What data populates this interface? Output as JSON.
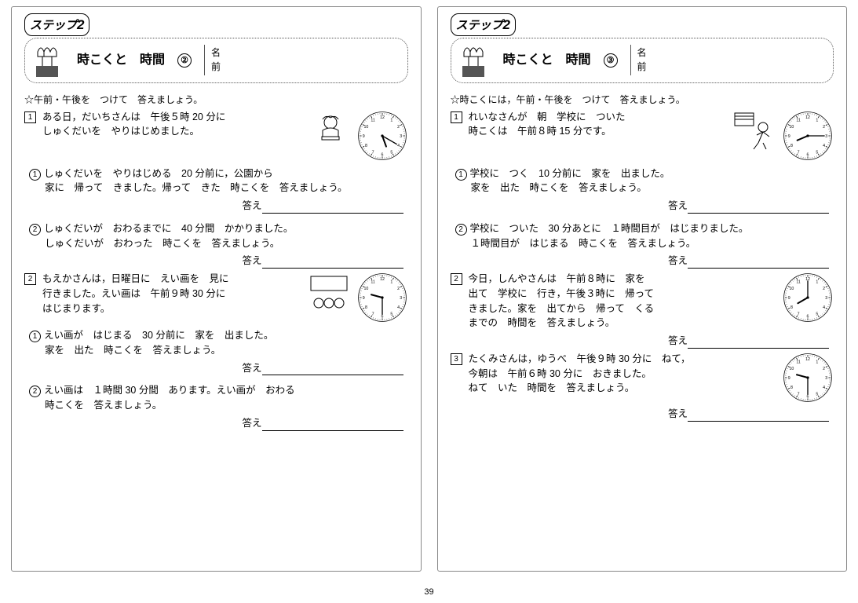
{
  "step_label": "ステップ",
  "step_num": "2",
  "namebox": {
    "line1": "名",
    "line2": "前"
  },
  "answer_label": "答え",
  "page_number": "39",
  "clock_numerals": [
    "12",
    "1",
    "2",
    "3",
    "4",
    "5",
    "6",
    "7",
    "8",
    "9",
    "10",
    "11"
  ],
  "left": {
    "title_main": "時こくと　時間",
    "title_num": "②",
    "instruction": "午前・午後を　つけて　答えましょう。",
    "s1": {
      "intro1": "ある日，だいちさんは　午後５時 20 分に",
      "intro2": "しゅくだいを　やりはじめました。",
      "clock": {
        "hour_angle": 160,
        "minute_angle": 120
      },
      "q1": {
        "l1": "しゅくだいを　やりはじめる　20 分前に，公園から",
        "l2": "家に　帰って　きました。帰って　きた　時こくを　答えましょう。"
      },
      "q2": {
        "l1": "しゅくだいが　おわるまでに　40 分間　かかりました。",
        "l2": "しゅくだいが　おわった　時こくを　答えましょう。"
      }
    },
    "s2": {
      "intro1": "もえかさんは，日曜日に　えい画を　見に",
      "intro2": "行きました。えい画は　午前９時 30 分に",
      "intro3": "はじまります。",
      "clock": {
        "hour_angle": 285,
        "minute_angle": 180
      },
      "q1": {
        "l1": "えい画が　はじまる　30 分前に　家を　出ました。",
        "l2": "家を　出た　時こくを　答えましょう。"
      },
      "q2": {
        "l1": "えい画は　１時間 30 分間　あります。えい画が　おわる",
        "l2": "時こくを　答えましょう。"
      }
    }
  },
  "right": {
    "title_main": "時こくと　時間",
    "title_num": "③",
    "instruction": "時こくには，午前・午後を　つけて　答えましょう。",
    "s1": {
      "intro1": "れいなさんが　朝　学校に　ついた",
      "intro2": "時こくは　午前８時 15 分です。",
      "clock": {
        "hour_angle": 247,
        "minute_angle": 90
      },
      "q1": {
        "l1": "学校に　つく　10 分前に　家を　出ました。",
        "l2": "家を　出た　時こくを　答えましょう。"
      },
      "q2": {
        "l1": "学校に　ついた　30 分あとに　１時間目が　はじまりました。",
        "l2": "１時間目が　はじまる　時こくを　答えましょう。"
      }
    },
    "s2": {
      "intro1": "今日，しんやさんは　午前８時に　家を",
      "intro2": "出て　学校に　行き，午後３時に　帰って",
      "intro3": "きました。家を　出てから　帰って　くる",
      "intro4": "までの　時間を　答えましょう。",
      "clock": {
        "hour_angle": 240,
        "minute_angle": 0
      }
    },
    "s3": {
      "intro1": "たくみさんは，ゆうべ　午後９時 30 分に　ねて，",
      "intro2": "今朝は　午前６時 30 分に　おきました。",
      "intro3": "ねて　いた　時間を　答えましょう。",
      "clock": {
        "hour_angle": 285,
        "minute_angle": 180
      }
    }
  }
}
